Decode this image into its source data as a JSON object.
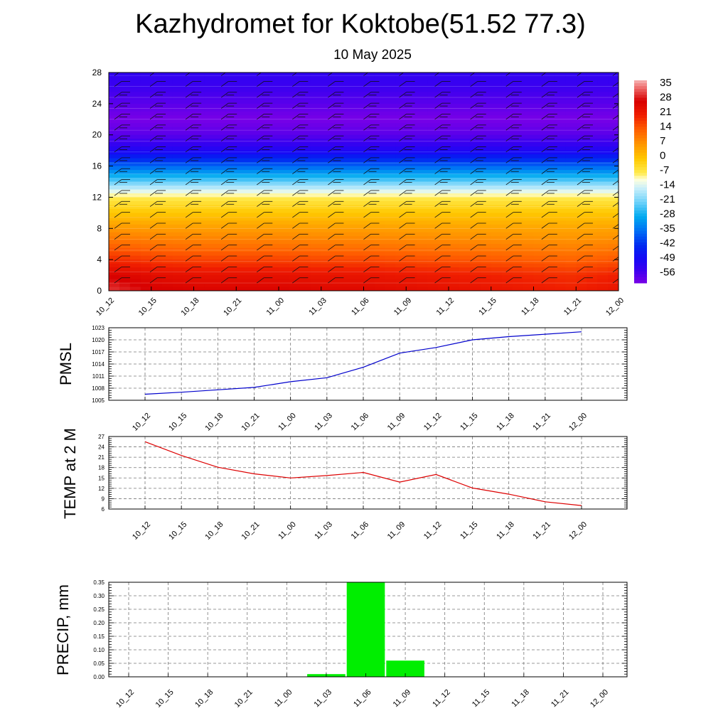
{
  "figure": {
    "title": "Kazhydromet for Koktobe(51.52 77.3)",
    "subtitle": "10 May 2025"
  },
  "time_labels": [
    "10_12",
    "10_15",
    "10_18",
    "10_21",
    "11_00",
    "11_03",
    "11_06",
    "11_09",
    "11_12",
    "11_15",
    "11_18",
    "11_21",
    "12_00"
  ],
  "chart_data": [
    {
      "type": "heatmap",
      "description_ref": "cross-section",
      "x": [
        "10_12",
        "10_15",
        "10_18",
        "10_21",
        "11_00",
        "11_03",
        "11_06",
        "11_09",
        "11_12",
        "11_15",
        "11_18",
        "11_21",
        "12_00"
      ],
      "y_ticks": [
        0,
        4,
        8,
        12,
        16,
        20,
        24,
        28
      ],
      "ylim": [
        0,
        28
      ],
      "colorbar_labels": [
        "35",
        "28",
        "21",
        "14",
        "7",
        "0",
        "-7",
        "-14",
        "-21",
        "-28",
        "-35",
        "-42",
        "-49",
        "-56"
      ],
      "colorbar_range": [
        -60,
        38
      ],
      "temperature_profile": [
        {
          "h": 0,
          "t": 27
        },
        {
          "h": 2,
          "t": 24
        },
        {
          "h": 4,
          "t": 17
        },
        {
          "h": 6,
          "t": 11
        },
        {
          "h": 8,
          "t": 6
        },
        {
          "h": 10,
          "t": 0
        },
        {
          "h": 12,
          "t": -7
        },
        {
          "h": 13,
          "t": -14
        },
        {
          "h": 14,
          "t": -22
        },
        {
          "h": 15,
          "t": -29
        },
        {
          "h": 16,
          "t": -36
        },
        {
          "h": 17,
          "t": -43
        },
        {
          "h": 18,
          "t": -50
        },
        {
          "h": 20,
          "t": -57
        },
        {
          "h": 22,
          "t": -60
        },
        {
          "h": 24,
          "t": -57
        },
        {
          "h": 26,
          "t": -54
        },
        {
          "h": 28,
          "t": -52
        }
      ],
      "surface_warming_by_time": [
        4,
        1,
        0,
        0,
        0,
        -1,
        -1,
        -2,
        -3,
        -4,
        -5,
        -6,
        -4
      ],
      "wind": "barbs"
    },
    {
      "type": "line",
      "ylabel": "PMSL",
      "x": [
        "10_12",
        "10_15",
        "10_18",
        "10_21",
        "11_00",
        "11_03",
        "11_06",
        "11_09",
        "11_12",
        "11_15",
        "11_18",
        "11_21",
        "12_00"
      ],
      "values": [
        1006.5,
        1007.0,
        1007.6,
        1008.2,
        1009.6,
        1010.6,
        1013.2,
        1016.7,
        1018.1,
        1020.0,
        1020.8,
        1021.4,
        1022.0
      ],
      "ylim": [
        1005,
        1023
      ],
      "y_ticks": [
        1005,
        1008,
        1011,
        1014,
        1017,
        1020,
        1023
      ],
      "color": "#0000cc"
    },
    {
      "type": "line",
      "ylabel": "TEMP at 2 M",
      "x": [
        "10_12",
        "10_15",
        "10_18",
        "10_21",
        "11_00",
        "11_03",
        "11_06",
        "11_09",
        "11_12",
        "11_15",
        "11_18",
        "11_21",
        "12_00"
      ],
      "values": [
        25.5,
        21.5,
        18.1,
        16.2,
        15.0,
        15.7,
        16.6,
        13.8,
        16.0,
        12.1,
        10.3,
        8.1,
        7.0
      ],
      "ylim": [
        6,
        27
      ],
      "y_ticks": [
        6,
        9,
        12,
        15,
        18,
        21,
        24,
        27
      ],
      "color": "#dd0000"
    },
    {
      "type": "bar",
      "ylabel": "PRECIP, mm",
      "x": [
        "10_12",
        "10_15",
        "10_18",
        "10_21",
        "11_00",
        "11_03",
        "11_06",
        "11_09",
        "11_12",
        "11_15",
        "11_18",
        "11_21",
        "12_00"
      ],
      "values": [
        0,
        0,
        0,
        0,
        0,
        0.01,
        0.35,
        0.06,
        0,
        0,
        0,
        0,
        0
      ],
      "ylim": [
        0,
        0.35
      ],
      "y_ticks": [
        "0.00",
        "0.05",
        "0.10",
        "0.15",
        "0.20",
        "0.25",
        "0.30",
        "0.35"
      ],
      "color": "#00ee00"
    }
  ]
}
